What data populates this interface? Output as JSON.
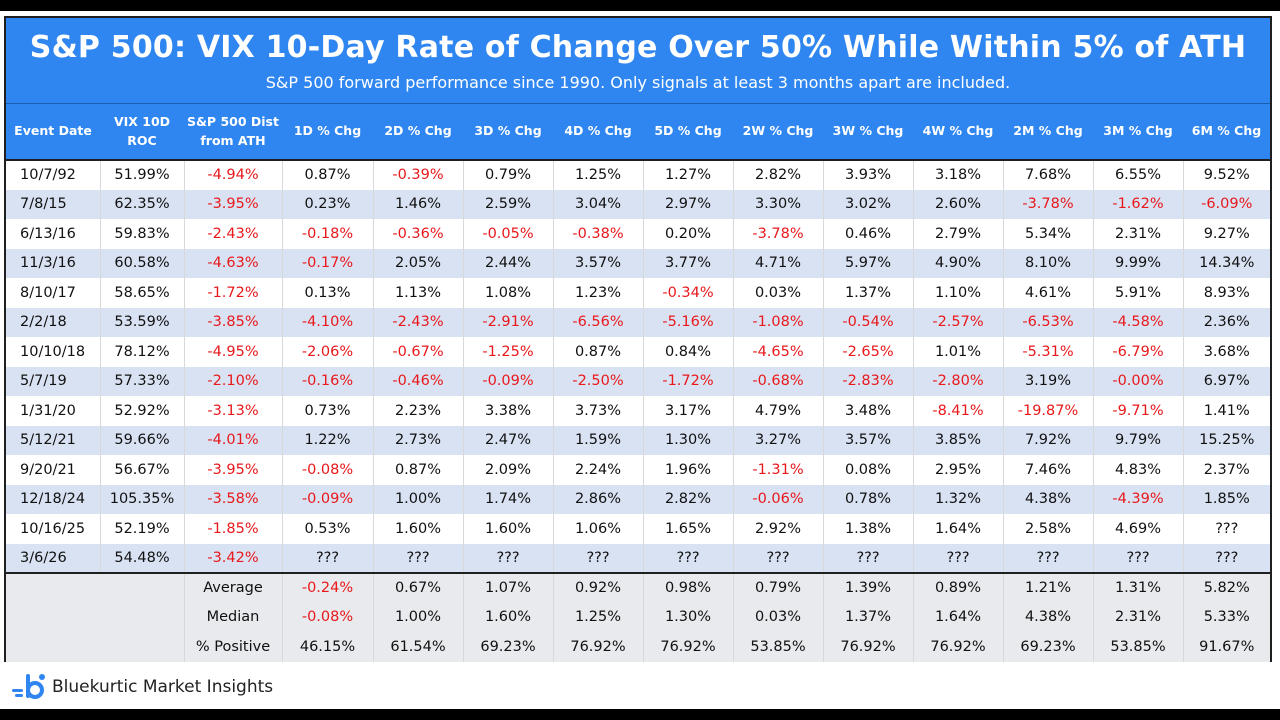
{
  "title": "S&P 500: VIX 10-Day Rate of Change Over 50% While Within 5% of ATH",
  "subtitle": "S&P 500 forward performance since 1990. Only signals at least 3 months apart are included.",
  "brand": {
    "name": "Bluekurtic Market Insights",
    "icon": "bluekurtic-logo-icon",
    "color": "#2f86f0"
  },
  "colors": {
    "header": "#2f86f0",
    "stripe": "#d9e2f3",
    "negative": "#e8181b",
    "stats": "#e8eaed"
  },
  "chart_data": {
    "type": "table",
    "columns": [
      [
        "Event Date"
      ],
      [
        "VIX 10D",
        "ROC"
      ],
      [
        "S&P 500 Dist",
        "from ATH"
      ],
      [
        "1D % Chg"
      ],
      [
        "2D % Chg"
      ],
      [
        "3D % Chg"
      ],
      [
        "4D % Chg"
      ],
      [
        "5D % Chg"
      ],
      [
        "2W % Chg"
      ],
      [
        "3W % Chg"
      ],
      [
        "4W % Chg"
      ],
      [
        "2M % Chg"
      ],
      [
        "3M % Chg"
      ],
      [
        "6M % Chg"
      ]
    ],
    "rows": [
      [
        "10/7/92",
        "51.99%",
        "-4.94%",
        "0.87%",
        "-0.39%",
        "0.79%",
        "1.25%",
        "1.27%",
        "2.82%",
        "3.93%",
        "3.18%",
        "7.68%",
        "6.55%",
        "9.52%"
      ],
      [
        "7/8/15",
        "62.35%",
        "-3.95%",
        "0.23%",
        "1.46%",
        "2.59%",
        "3.04%",
        "2.97%",
        "3.30%",
        "3.02%",
        "2.60%",
        "-3.78%",
        "-1.62%",
        "-6.09%"
      ],
      [
        "6/13/16",
        "59.83%",
        "-2.43%",
        "-0.18%",
        "-0.36%",
        "-0.05%",
        "-0.38%",
        "0.20%",
        "-3.78%",
        "0.46%",
        "2.79%",
        "5.34%",
        "2.31%",
        "9.27%"
      ],
      [
        "11/3/16",
        "60.58%",
        "-4.63%",
        "-0.17%",
        "2.05%",
        "2.44%",
        "3.57%",
        "3.77%",
        "4.71%",
        "5.97%",
        "4.90%",
        "8.10%",
        "9.99%",
        "14.34%"
      ],
      [
        "8/10/17",
        "58.65%",
        "-1.72%",
        "0.13%",
        "1.13%",
        "1.08%",
        "1.23%",
        "-0.34%",
        "0.03%",
        "1.37%",
        "1.10%",
        "4.61%",
        "5.91%",
        "8.93%"
      ],
      [
        "2/2/18",
        "53.59%",
        "-3.85%",
        "-4.10%",
        "-2.43%",
        "-2.91%",
        "-6.56%",
        "-5.16%",
        "-1.08%",
        "-0.54%",
        "-2.57%",
        "-6.53%",
        "-4.58%",
        "2.36%"
      ],
      [
        "10/10/18",
        "78.12%",
        "-4.95%",
        "-2.06%",
        "-0.67%",
        "-1.25%",
        "0.87%",
        "0.84%",
        "-4.65%",
        "-2.65%",
        "1.01%",
        "-5.31%",
        "-6.79%",
        "3.68%"
      ],
      [
        "5/7/19",
        "57.33%",
        "-2.10%",
        "-0.16%",
        "-0.46%",
        "-0.09%",
        "-2.50%",
        "-1.72%",
        "-0.68%",
        "-2.83%",
        "-2.80%",
        "3.19%",
        "-0.00%",
        "6.97%"
      ],
      [
        "1/31/20",
        "52.92%",
        "-3.13%",
        "0.73%",
        "2.23%",
        "3.38%",
        "3.73%",
        "3.17%",
        "4.79%",
        "3.48%",
        "-8.41%",
        "-19.87%",
        "-9.71%",
        "1.41%"
      ],
      [
        "5/12/21",
        "59.66%",
        "-4.01%",
        "1.22%",
        "2.73%",
        "2.47%",
        "1.59%",
        "1.30%",
        "3.27%",
        "3.57%",
        "3.85%",
        "7.92%",
        "9.79%",
        "15.25%"
      ],
      [
        "9/20/21",
        "56.67%",
        "-3.95%",
        "-0.08%",
        "0.87%",
        "2.09%",
        "2.24%",
        "1.96%",
        "-1.31%",
        "0.08%",
        "2.95%",
        "7.46%",
        "4.83%",
        "2.37%"
      ],
      [
        "12/18/24",
        "105.35%",
        "-3.58%",
        "-0.09%",
        "1.00%",
        "1.74%",
        "2.86%",
        "2.82%",
        "-0.06%",
        "0.78%",
        "1.32%",
        "4.38%",
        "-4.39%",
        "1.85%"
      ],
      [
        "10/16/25",
        "52.19%",
        "-1.85%",
        "0.53%",
        "1.60%",
        "1.60%",
        "1.06%",
        "1.65%",
        "2.92%",
        "1.38%",
        "1.64%",
        "2.58%",
        "4.69%",
        "???"
      ],
      [
        "3/6/26",
        "54.48%",
        "-3.42%",
        "???",
        "???",
        "???",
        "???",
        "???",
        "???",
        "???",
        "???",
        "???",
        "???",
        "???"
      ]
    ],
    "summary": [
      {
        "label": "Average",
        "values": [
          "-0.24%",
          "0.67%",
          "1.07%",
          "0.92%",
          "0.98%",
          "0.79%",
          "1.39%",
          "0.89%",
          "1.21%",
          "1.31%",
          "5.82%"
        ]
      },
      {
        "label": "Median",
        "values": [
          "-0.08%",
          "1.00%",
          "1.60%",
          "1.25%",
          "1.30%",
          "0.03%",
          "1.37%",
          "1.64%",
          "4.38%",
          "2.31%",
          "5.33%"
        ]
      },
      {
        "label": "% Positive",
        "values": [
          "46.15%",
          "61.54%",
          "69.23%",
          "76.92%",
          "76.92%",
          "53.85%",
          "76.92%",
          "76.92%",
          "69.23%",
          "53.85%",
          "91.67%"
        ]
      }
    ]
  }
}
